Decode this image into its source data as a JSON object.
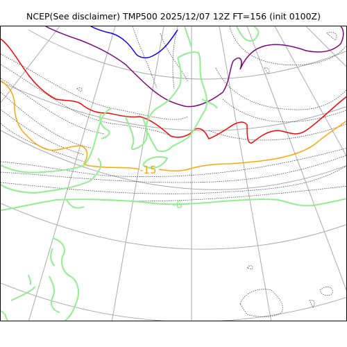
{
  "title": "NCEP(See disclaimer) TMP500 2025/12/07 12Z FT=156 (init 0100Z)",
  "map": {
    "contour_labels": [
      {
        "text": "-15",
        "color": "#ffa500"
      },
      {
        "text": "-6",
        "color": "#90ee90"
      }
    ],
    "colors": {
      "isotherm_blue": "#0000ff",
      "isotherm_purple": "#800080",
      "isotherm_red": "#ff0000",
      "isotherm_orange": "#ffa500",
      "coastline_green": "#90ee90",
      "graticule": "#aaaaaa",
      "dotted_contour": "#444444"
    }
  }
}
